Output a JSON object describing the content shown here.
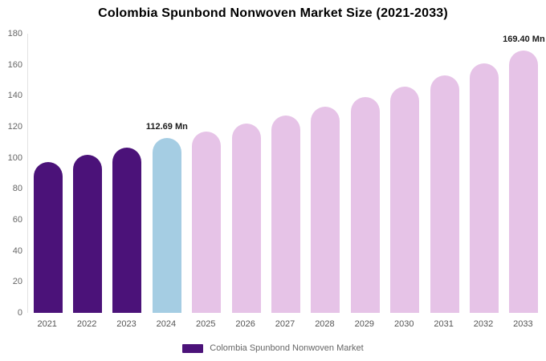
{
  "chart_data": {
    "type": "bar",
    "title": "Colombia Spunbond Nonwoven Market Size (2021-2033)",
    "categories": [
      "2021",
      "2022",
      "2023",
      "2024",
      "2025",
      "2026",
      "2027",
      "2028",
      "2029",
      "2030",
      "2031",
      "2032",
      "2033"
    ],
    "values": [
      97,
      102,
      106.5,
      112.69,
      117,
      122,
      127,
      133,
      139,
      146,
      153,
      161,
      169.4
    ],
    "unit": "Mn",
    "ylim": [
      0,
      180
    ],
    "yticks": [
      0,
      20,
      40,
      60,
      80,
      100,
      120,
      140,
      160,
      180
    ],
    "bar_colors": [
      "#4b1279",
      "#4b1279",
      "#4b1279",
      "#a5cde3",
      "#e6c3e7",
      "#e6c3e7",
      "#e6c3e7",
      "#e6c3e7",
      "#e6c3e7",
      "#e6c3e7",
      "#e6c3e7",
      "#e6c3e7",
      "#e6c3e7"
    ],
    "annotations": [
      {
        "index": 3,
        "text": "112.69 Mn"
      },
      {
        "index": 12,
        "text": "169.40 Mn"
      }
    ],
    "legend_label": "Colombia Spunbond Nonwoven Market",
    "legend_color": "#4b1279",
    "grid": false,
    "legend_position": "bottom"
  }
}
